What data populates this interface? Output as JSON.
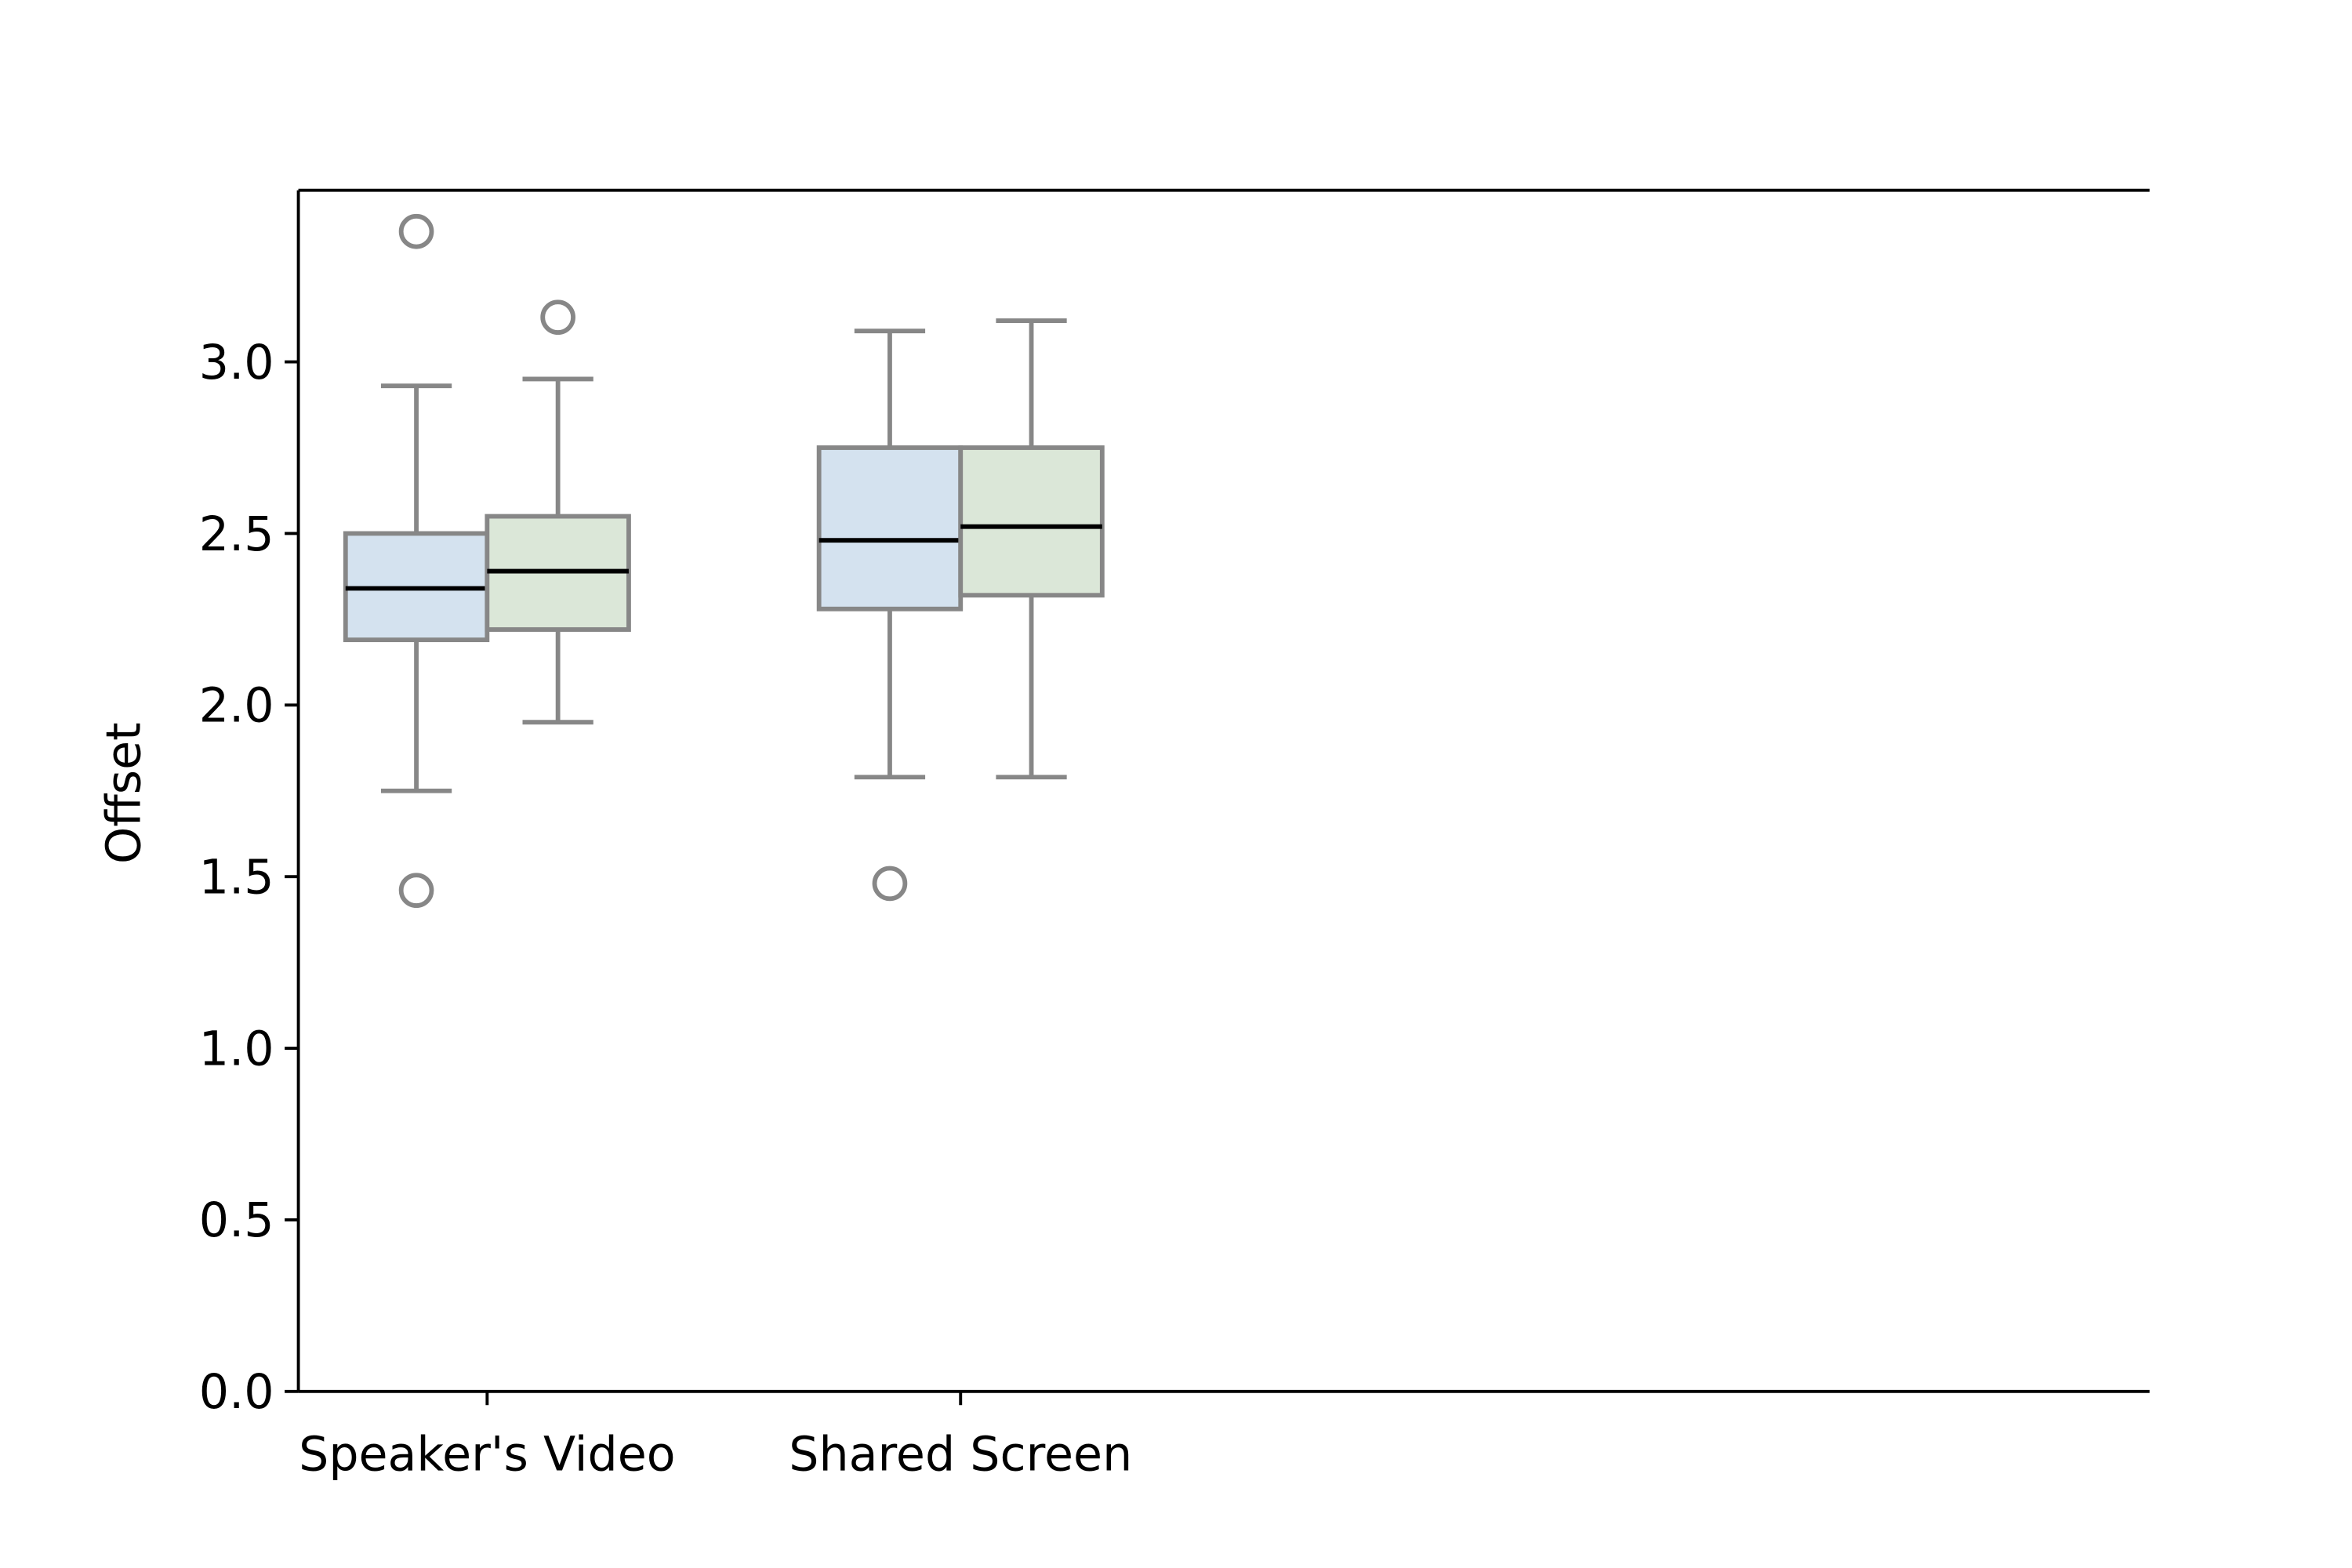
{
  "chart_data": {
    "type": "box",
    "ylabel": "Offset",
    "xlabel": "",
    "ylim": [
      0.0,
      3.5
    ],
    "yticks": [
      "0.0",
      "0.5",
      "1.0",
      "1.5",
      "2.0",
      "2.5",
      "3.0"
    ],
    "categories": [
      "Speaker's Video",
      "Shared Screen"
    ],
    "grid": false,
    "series_colors": [
      "#d4e2ef",
      "#dbe7d8"
    ],
    "edge_color": "#878787",
    "median_color": "#000000",
    "boxes": [
      {
        "category": "Speaker's Video",
        "series": 0,
        "whisker_low": 1.75,
        "q1": 2.19,
        "median": 2.34,
        "q3": 2.5,
        "whisker_high": 2.93,
        "outliers": [
          3.38,
          1.46
        ]
      },
      {
        "category": "Speaker's Video",
        "series": 1,
        "whisker_low": 1.95,
        "q1": 2.22,
        "median": 2.39,
        "q3": 2.55,
        "whisker_high": 2.95,
        "outliers": [
          3.13
        ]
      },
      {
        "category": "Shared Screen",
        "series": 0,
        "whisker_low": 1.79,
        "q1": 2.28,
        "median": 2.48,
        "q3": 2.75,
        "whisker_high": 3.09,
        "outliers": [
          1.48
        ]
      },
      {
        "category": "Shared Screen",
        "series": 1,
        "whisker_low": 1.79,
        "q1": 2.32,
        "median": 2.52,
        "q3": 2.75,
        "whisker_high": 3.12,
        "outliers": []
      }
    ]
  }
}
